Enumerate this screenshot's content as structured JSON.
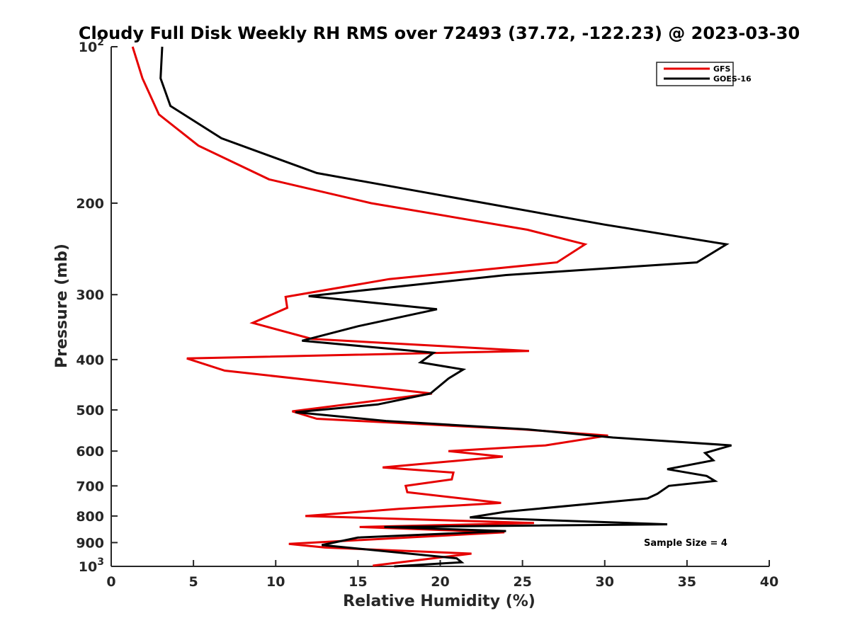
{
  "chart_data": {
    "type": "line",
    "title": "Cloudy Full Disk Weekly RH RMS over 72493 (37.72, -122.23) @ 2023-03-30",
    "xlabel": "Relative Humidity (%)",
    "ylabel": "Pressure (mb)",
    "xlim": [
      0,
      40
    ],
    "ylim": [
      100,
      1000
    ],
    "y_scale": "log",
    "y_reversed": true,
    "x_ticks": [
      "0",
      "5",
      "10",
      "15",
      "20",
      "25",
      "30",
      "35",
      "40"
    ],
    "y_ticks": [
      {
        "value": 100,
        "base": "10",
        "exp": "2"
      },
      {
        "value": 200,
        "label": "200"
      },
      {
        "value": 300,
        "label": "300"
      },
      {
        "value": 400,
        "label": "400"
      },
      {
        "value": 500,
        "label": "500"
      },
      {
        "value": 600,
        "label": "600"
      },
      {
        "value": 700,
        "label": "700"
      },
      {
        "value": 800,
        "label": "800"
      },
      {
        "value": 900,
        "label": "900"
      },
      {
        "value": 1000,
        "base": "10",
        "exp": "3"
      }
    ],
    "grid": false,
    "legend_position": "top-right",
    "series": [
      {
        "name": "GFS",
        "color": "#e60000",
        "x": [
          1.3,
          1.9,
          2.9,
          5.3,
          9.6,
          15.8,
          25.3,
          28.8,
          27.1,
          16.9,
          10.6,
          10.7,
          8.6,
          12.2,
          25.4,
          4.6,
          6.9,
          19.5,
          11.0,
          12.5,
          25.0,
          30.2,
          26.4,
          20.5,
          23.8,
          16.5,
          20.8,
          20.7,
          17.9,
          18.0,
          23.7,
          17.5,
          11.8,
          25.7,
          15.1,
          23.9,
          10.8,
          13.0,
          21.9,
          15.9
        ],
        "y": [
          100,
          115,
          135,
          155,
          180,
          200,
          225,
          240,
          260,
          280,
          303,
          318,
          340,
          365,
          385,
          398,
          420,
          465,
          503,
          520,
          545,
          560,
          585,
          600,
          615,
          645,
          660,
          680,
          700,
          720,
          755,
          775,
          800,
          825,
          840,
          860,
          905,
          920,
          945,
          997
        ]
      },
      {
        "name": "GOES-16",
        "color": "#000000",
        "x": [
          3.1,
          3.0,
          3.6,
          6.7,
          12.5,
          30.0,
          37.4,
          35.6,
          24.0,
          12.0,
          19.8,
          15.0,
          11.6,
          19.6,
          18.8,
          21.4,
          20.5,
          19.4,
          16.2,
          11.2,
          16.7,
          25.3,
          30.5,
          37.7,
          36.1,
          36.6,
          33.8,
          36.2,
          36.7,
          33.9,
          33.2,
          32.6,
          24.0,
          21.8,
          33.8,
          16.6,
          24.0,
          15.0,
          12.8,
          21.0,
          21.3,
          17.2
        ],
        "y": [
          100,
          115,
          130,
          150,
          175,
          220,
          240,
          260,
          275,
          302,
          320,
          345,
          368,
          388,
          405,
          418,
          435,
          465,
          488,
          505,
          525,
          545,
          565,
          585,
          605,
          625,
          650,
          670,
          685,
          700,
          725,
          740,
          785,
          805,
          830,
          840,
          855,
          880,
          910,
          965,
          982,
          1000
        ]
      }
    ],
    "annotations": [
      "Sample Size = 4"
    ]
  }
}
